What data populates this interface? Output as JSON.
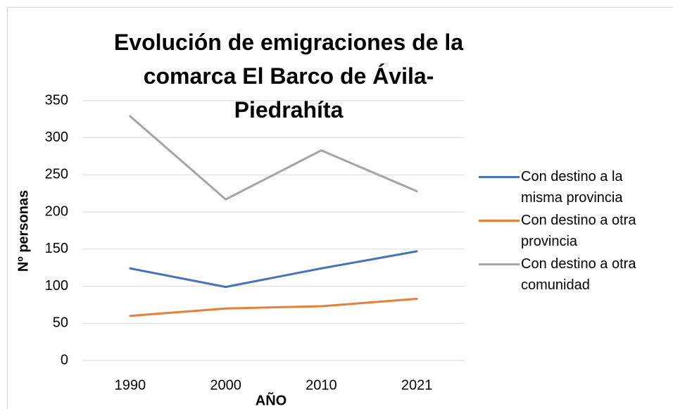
{
  "chart_data": {
    "type": "line",
    "title": "Evolución de emigraciones de la comarca El Barco de Ávila-Piedrahíta",
    "x_label": "AÑO",
    "y_label": "Nº personas",
    "categories": [
      "1990",
      "2000",
      "2010",
      "2021"
    ],
    "series": [
      {
        "name": "Con destino a la misma provincia",
        "color": "#4472c4",
        "values": [
          124,
          99,
          124,
          147
        ]
      },
      {
        "name": "Con destino a otra provincia",
        "color": "#ed7d31",
        "values": [
          60,
          70,
          73,
          83
        ]
      },
      {
        "name": "Con destino a otra comunidad",
        "color": "#a5a5a5",
        "values": [
          329,
          217,
          283,
          228
        ]
      }
    ],
    "ylim": [
      0,
      350
    ],
    "yticks": [
      0,
      50,
      100,
      150,
      200,
      250,
      300,
      350
    ],
    "grid": true,
    "legend": "right"
  }
}
